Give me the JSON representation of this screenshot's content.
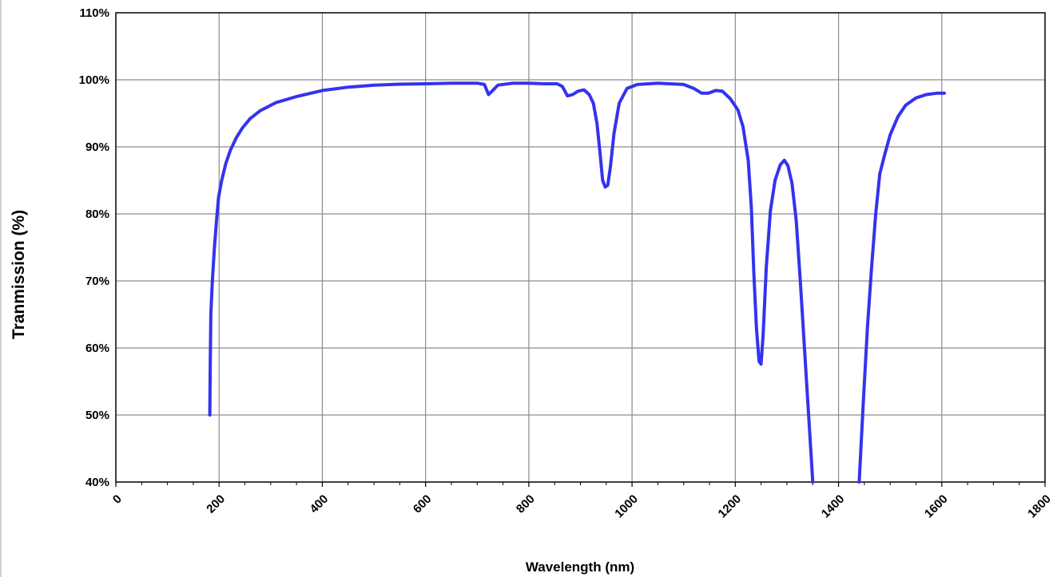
{
  "chart_data": {
    "type": "line",
    "title": "",
    "xlabel": "Wavelength  (nm)",
    "ylabel": "Tranmission (%)",
    "xlim": [
      0,
      1800
    ],
    "ylim": [
      40,
      110
    ],
    "x_ticks": [
      0,
      200,
      400,
      600,
      800,
      1000,
      1200,
      1400,
      1600,
      1800
    ],
    "x_tick_labels": [
      "0",
      "200",
      "400",
      "600",
      "800",
      "1000",
      "1200",
      "1400",
      "1600",
      "1800"
    ],
    "y_ticks": [
      40,
      50,
      60,
      70,
      80,
      90,
      100,
      110
    ],
    "y_tick_labels": [
      "40%",
      "50%",
      "60%",
      "70%",
      "80%",
      "90%",
      "100%",
      "110%"
    ],
    "grid": true,
    "legend": "none",
    "series_color": "#3333ee",
    "series": [
      {
        "segments": [
          [
            [
              182,
              50
            ],
            [
              183,
              58
            ],
            [
              184,
              65
            ],
            [
              187,
              70
            ],
            [
              191,
              75
            ],
            [
              195,
              79
            ],
            [
              199,
              82.5
            ],
            [
              205,
              85
            ],
            [
              213,
              87.5
            ],
            [
              222,
              89.5
            ],
            [
              233,
              91.3
            ],
            [
              245,
              92.8
            ],
            [
              260,
              94.2
            ],
            [
              280,
              95.4
            ],
            [
              310,
              96.6
            ],
            [
              350,
              97.5
            ],
            [
              400,
              98.4
            ],
            [
              450,
              98.9
            ],
            [
              500,
              99.2
            ],
            [
              550,
              99.35
            ],
            [
              600,
              99.4
            ],
            [
              650,
              99.5
            ],
            [
              700,
              99.5
            ],
            [
              714,
              99.3
            ],
            [
              722,
              97.8
            ],
            [
              730,
              98.4
            ],
            [
              740,
              99.2
            ],
            [
              770,
              99.5
            ],
            [
              800,
              99.5
            ],
            [
              830,
              99.4
            ],
            [
              855,
              99.4
            ],
            [
              865,
              99.0
            ],
            [
              875,
              97.6
            ],
            [
              885,
              97.8
            ],
            [
              895,
              98.3
            ],
            [
              907,
              98.5
            ],
            [
              917,
              97.8
            ],
            [
              925,
              96.5
            ],
            [
              932,
              93.5
            ],
            [
              938,
              89.0
            ],
            [
              943,
              85.0
            ],
            [
              948,
              84.0
            ],
            [
              953,
              84.3
            ],
            [
              958,
              87.0
            ],
            [
              965,
              92.0
            ],
            [
              975,
              96.5
            ],
            [
              990,
              98.7
            ],
            [
              1010,
              99.3
            ],
            [
              1050,
              99.5
            ],
            [
              1100,
              99.3
            ],
            [
              1120,
              98.7
            ],
            [
              1135,
              98.0
            ],
            [
              1148,
              98.0
            ],
            [
              1162,
              98.4
            ],
            [
              1175,
              98.3
            ],
            [
              1190,
              97.2
            ],
            [
              1205,
              95.5
            ],
            [
              1215,
              93.0
            ],
            [
              1225,
              88.0
            ],
            [
              1231,
              81.0
            ],
            [
              1236,
              71.0
            ],
            [
              1241,
              63.0
            ],
            [
              1246,
              58.0
            ],
            [
              1250,
              57.6
            ],
            [
              1254,
              62.0
            ],
            [
              1260,
              72.0
            ],
            [
              1268,
              80.5
            ],
            [
              1277,
              85.0
            ],
            [
              1287,
              87.3
            ],
            [
              1295,
              88.0
            ],
            [
              1302,
              87.2
            ],
            [
              1310,
              84.5
            ],
            [
              1318,
              79.0
            ],
            [
              1326,
              70.0
            ],
            [
              1334,
              60.0
            ],
            [
              1342,
              50.0
            ],
            [
              1350,
              40.0
            ]
          ],
          [
            [
              1440,
              40.0
            ],
            [
              1448,
              52.0
            ],
            [
              1456,
              63.0
            ],
            [
              1464,
              72.0
            ],
            [
              1472,
              80.0
            ],
            [
              1480,
              86.0
            ],
            [
              1490,
              89.0
            ],
            [
              1500,
              91.8
            ],
            [
              1515,
              94.5
            ],
            [
              1530,
              96.2
            ],
            [
              1550,
              97.3
            ],
            [
              1570,
              97.8
            ],
            [
              1590,
              98.0
            ],
            [
              1605,
              98.0
            ]
          ]
        ]
      }
    ]
  }
}
